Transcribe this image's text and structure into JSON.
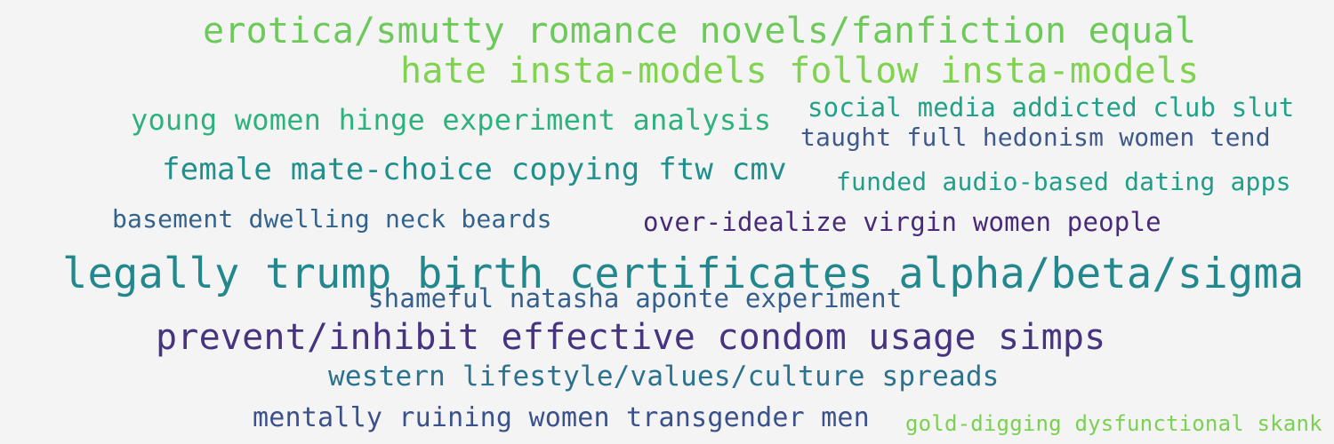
{
  "phrases": [
    {
      "text": "erotica/smutty romance novels/fanfiction equal",
      "color": "#6cc95a"
    },
    {
      "text": "hate insta-models follow insta-models",
      "color": "#7fd34e"
    },
    {
      "text": "young women hinge experiment analysis",
      "color": "#2db27d"
    },
    {
      "text": "social media addicted club slut",
      "color": "#1fa287"
    },
    {
      "text": "taught full hedonism women tend",
      "color": "#3e5a8c"
    },
    {
      "text": "female mate-choice copying ftw cmv",
      "color": "#21908d"
    },
    {
      "text": "funded audio-based dating apps",
      "color": "#1f9e89"
    },
    {
      "text": "basement dwelling neck beards",
      "color": "#33638d"
    },
    {
      "text": "over-idealize virgin women people",
      "color": "#472a7a"
    },
    {
      "text": "legally trump birth certificates alpha/beta/sigma",
      "color": "#23888e"
    },
    {
      "text": "shameful natasha aponte experiment",
      "color": "#355f8d"
    },
    {
      "text": "prevent/inhibit effective condom usage simps",
      "color": "#463480"
    },
    {
      "text": "western lifestyle/values/culture spreads",
      "color": "#2c728e"
    },
    {
      "text": "mentally ruining women transgender men",
      "color": "#3b518b"
    },
    {
      "text": "gold-digging dysfunctional skank",
      "color": "#7ad151"
    }
  ]
}
